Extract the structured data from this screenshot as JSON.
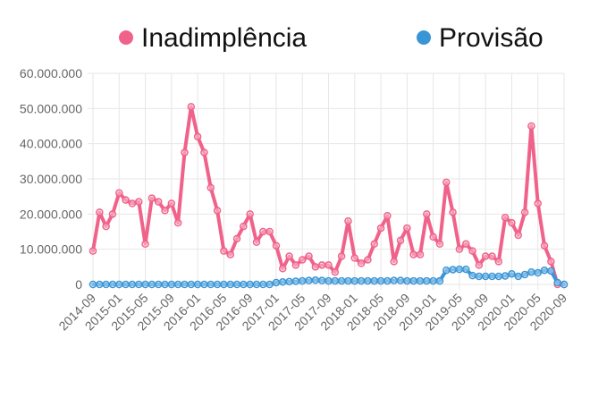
{
  "chart_data": {
    "type": "line",
    "title": "",
    "xlabel": "",
    "ylabel": "",
    "ylim": [
      0,
      60000000
    ],
    "grid": true,
    "legend_position": "top",
    "y_ticks": [
      "0",
      "10.000.000",
      "20.000.000",
      "30.000.000",
      "40.000.000",
      "50.000.000",
      "60.000.000"
    ],
    "x_tick_labels": [
      "2014-09",
      "2015-01",
      "2015-05",
      "2015-09",
      "2016-01",
      "2016-05",
      "2016-09",
      "2017-01",
      "2017-05",
      "2017-09",
      "2018-01",
      "2018-05",
      "2018-09",
      "2019-01",
      "2019-05",
      "2019-09",
      "2020-01",
      "2020-05",
      "2020-09"
    ],
    "categories": [
      "2014-09",
      "2014-10",
      "2014-11",
      "2014-12",
      "2015-01",
      "2015-02",
      "2015-03",
      "2015-04",
      "2015-05",
      "2015-06",
      "2015-07",
      "2015-08",
      "2015-09",
      "2015-10",
      "2015-11",
      "2015-12",
      "2016-01",
      "2016-02",
      "2016-03",
      "2016-04",
      "2016-05",
      "2016-06",
      "2016-07",
      "2016-08",
      "2016-09",
      "2016-10",
      "2016-11",
      "2016-12",
      "2017-01",
      "2017-02",
      "2017-03",
      "2017-04",
      "2017-05",
      "2017-06",
      "2017-07",
      "2017-08",
      "2017-09",
      "2017-10",
      "2017-11",
      "2017-12",
      "2018-01",
      "2018-02",
      "2018-03",
      "2018-04",
      "2018-05",
      "2018-06",
      "2018-07",
      "2018-08",
      "2018-09",
      "2018-10",
      "2018-11",
      "2018-12",
      "2019-01",
      "2019-02",
      "2019-03",
      "2019-04",
      "2019-05",
      "2019-06",
      "2019-07",
      "2019-08",
      "2019-09",
      "2019-10",
      "2019-11",
      "2019-12",
      "2020-01",
      "2020-02",
      "2020-03",
      "2020-04",
      "2020-05",
      "2020-06",
      "2020-07",
      "2020-08",
      "2020-09"
    ],
    "series": [
      {
        "name": "Inadimplência",
        "color": "#f0628a",
        "values": [
          9500000,
          20500000,
          16500000,
          20000000,
          26000000,
          24000000,
          23000000,
          23500000,
          11500000,
          24500000,
          23500000,
          21000000,
          23000000,
          17500000,
          37500000,
          50500000,
          42000000,
          37500000,
          27500000,
          21000000,
          9500000,
          8500000,
          13000000,
          16500000,
          20000000,
          12000000,
          15000000,
          15000000,
          11000000,
          4500000,
          8000000,
          5500000,
          7000000,
          8000000,
          5000000,
          5500000,
          5500000,
          3500000,
          8000000,
          18000000,
          7500000,
          6000000,
          7000000,
          11500000,
          16000000,
          19500000,
          6500000,
          12500000,
          16000000,
          8500000,
          8500000,
          20000000,
          13500000,
          11500000,
          29000000,
          20500000,
          10000000,
          11500000,
          9500000,
          5500000,
          8000000,
          8000000,
          6500000,
          19000000,
          17500000,
          14000000,
          20500000,
          45000000,
          23000000,
          11000000,
          6500000,
          0,
          0
        ]
      },
      {
        "name": "Provisão",
        "color": "#3a95d6",
        "values": [
          0,
          0,
          0,
          0,
          0,
          0,
          0,
          0,
          0,
          0,
          0,
          0,
          0,
          0,
          0,
          0,
          0,
          0,
          0,
          0,
          0,
          0,
          0,
          0,
          0,
          0,
          0,
          0,
          500000,
          700000,
          800000,
          900000,
          1000000,
          1100000,
          1200000,
          1100000,
          1000000,
          1000000,
          1000000,
          1000000,
          1000000,
          1000000,
          1000000,
          1000000,
          1000000,
          1000000,
          1100000,
          1100000,
          1000000,
          1000000,
          1000000,
          1000000,
          1000000,
          1000000,
          4000000,
          4200000,
          4300000,
          4300000,
          2500000,
          2300000,
          2300000,
          2300000,
          2300000,
          2400000,
          3000000,
          2300000,
          2800000,
          3500000,
          3300000,
          4000000,
          3800000,
          500000,
          0
        ]
      }
    ]
  }
}
